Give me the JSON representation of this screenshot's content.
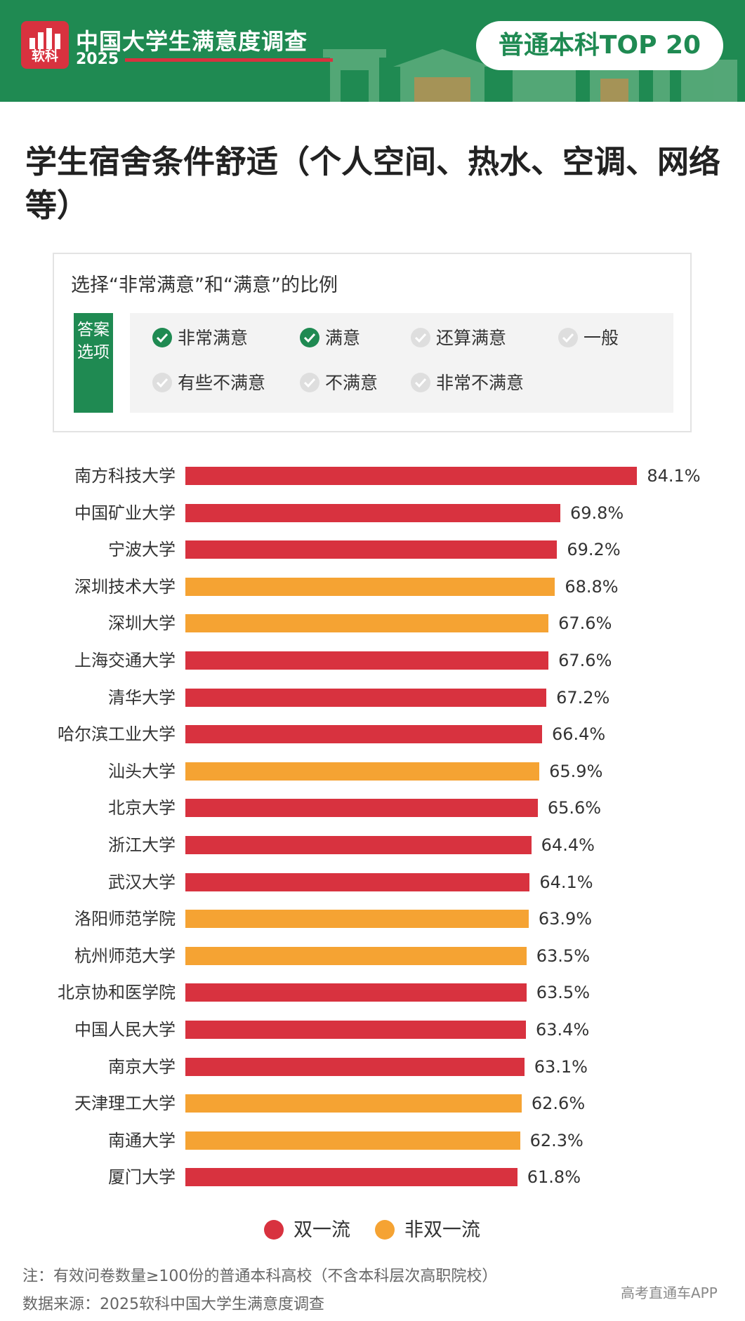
{
  "header": {
    "logo_text": "软科",
    "survey_name": "中国大学生满意度调查",
    "year": "2025",
    "badge": "普通本科TOP 20",
    "brand_colors": {
      "green": "#1f8a52",
      "red": "#d8323f",
      "orange": "#f5a333"
    }
  },
  "heading": "学生宿舍条件舒适（个人空间、热水、空调、网络等）",
  "legend_box": {
    "subtitle": "选择“非常满意”和“满意”的比例",
    "options_label": "答案选项",
    "options": [
      {
        "label": "非常满意",
        "checked": true
      },
      {
        "label": "满意",
        "checked": true
      },
      {
        "label": "还算满意",
        "checked": false
      },
      {
        "label": "一般",
        "checked": false
      },
      {
        "label": "有些不满意",
        "checked": false
      },
      {
        "label": "不满意",
        "checked": false
      },
      {
        "label": "非常不满意",
        "checked": false
      }
    ]
  },
  "chart_data": {
    "type": "bar",
    "orientation": "horizontal",
    "value_unit": "%",
    "xlim": [
      0,
      100
    ],
    "grid": false,
    "legend_placement": "bottom",
    "categories": [
      "南方科技大学",
      "中国矿业大学",
      "宁波大学",
      "深圳技术大学",
      "深圳大学",
      "上海交通大学",
      "清华大学",
      "哈尔滨工业大学",
      "汕头大学",
      "北京大学",
      "浙江大学",
      "武汉大学",
      "洛阳师范学院",
      "杭州师范大学",
      "北京协和医学院",
      "中国人民大学",
      "南京大学",
      "天津理工大学",
      "南通大学",
      "厦门大学"
    ],
    "values": [
      84.1,
      69.8,
      69.2,
      68.8,
      67.6,
      67.6,
      67.2,
      66.4,
      65.9,
      65.6,
      64.4,
      64.1,
      63.9,
      63.5,
      63.5,
      63.4,
      63.1,
      62.6,
      62.3,
      61.8
    ],
    "value_labels": [
      "84.1%",
      "69.8%",
      "69.2%",
      "68.8%",
      "67.6%",
      "67.6%",
      "67.2%",
      "66.4%",
      "65.9%",
      "65.6%",
      "64.4%",
      "64.1%",
      "63.9%",
      "63.5%",
      "63.5%",
      "63.4%",
      "63.1%",
      "62.6%",
      "62.3%",
      "61.8%"
    ],
    "groups": [
      "双一流",
      "双一流",
      "双一流",
      "非双一流",
      "非双一流",
      "双一流",
      "双一流",
      "双一流",
      "非双一流",
      "双一流",
      "双一流",
      "双一流",
      "非双一流",
      "非双一流",
      "双一流",
      "双一流",
      "双一流",
      "非双一流",
      "非双一流",
      "双一流"
    ],
    "legend": [
      {
        "name": "双一流",
        "color": "#d8323f"
      },
      {
        "name": "非双一流",
        "color": "#f5a333"
      }
    ]
  },
  "notes": {
    "note": "注：有效问卷数量≥100份的普通本科高校（不含本科层次高职院校）",
    "source": "数据来源：2025软科中国大学生满意度调查",
    "watermark": "高考直通车APP"
  }
}
